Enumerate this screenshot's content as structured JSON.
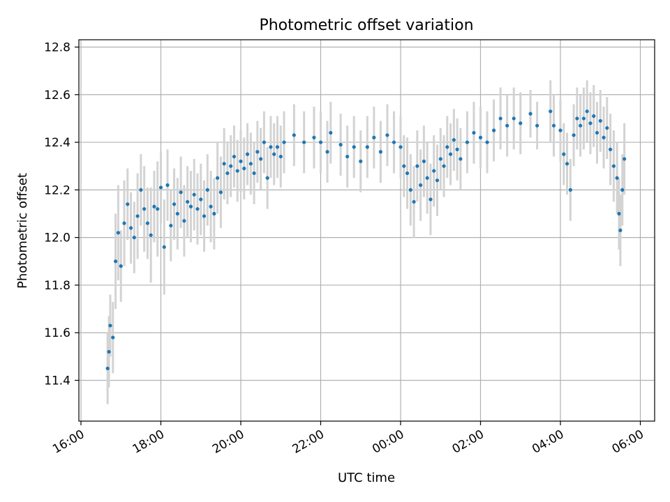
{
  "chart_data": {
    "type": "scatter",
    "title": "Photometric offset variation",
    "xlabel": "UTC time",
    "ylabel": "Photometric offset",
    "x_ticks": [
      "16:00",
      "18:00",
      "20:00",
      "22:00",
      "00:00",
      "02:00",
      "04:00",
      "06:00"
    ],
    "y_ticks": [
      "11.4",
      "11.6",
      "11.8",
      "12.0",
      "12.2",
      "12.4",
      "12.6",
      "12.8"
    ],
    "xlim": [
      "16:00",
      "06:20"
    ],
    "ylim": [
      11.23,
      12.83
    ],
    "grid": true,
    "x_tick_rotation_deg": 30,
    "colors": {
      "points": "#1f77b4",
      "errorbars": "#d3d3d3",
      "grid": "#b0b0b0"
    },
    "series": [
      {
        "marker": "dot",
        "error_band_half_width_approx": 0.13,
        "points": [
          [
            "16:40",
            11.45,
            0.15
          ],
          [
            "16:42",
            11.52,
            0.15
          ],
          [
            "16:44",
            11.63,
            0.13
          ],
          [
            "16:48",
            11.58,
            0.15
          ],
          [
            "16:52",
            11.9,
            0.2
          ],
          [
            "16:56",
            12.02,
            0.2
          ],
          [
            "17:00",
            11.88,
            0.15
          ],
          [
            "17:05",
            12.06,
            0.18
          ],
          [
            "17:10",
            12.14,
            0.15
          ],
          [
            "17:15",
            12.04,
            0.15
          ],
          [
            "17:20",
            12.0,
            0.15
          ],
          [
            "17:25",
            12.09,
            0.18
          ],
          [
            "17:30",
            12.2,
            0.15
          ],
          [
            "17:35",
            12.12,
            0.18
          ],
          [
            "17:40",
            12.06,
            0.15
          ],
          [
            "17:45",
            12.01,
            0.2
          ],
          [
            "17:50",
            12.13,
            0.15
          ],
          [
            "17:55",
            12.12,
            0.2
          ],
          [
            "18:00",
            12.21,
            0.15
          ],
          [
            "18:05",
            11.96,
            0.2
          ],
          [
            "18:10",
            12.22,
            0.15
          ],
          [
            "18:15",
            12.05,
            0.15
          ],
          [
            "18:20",
            12.14,
            0.15
          ],
          [
            "18:25",
            12.1,
            0.15
          ],
          [
            "18:30",
            12.19,
            0.15
          ],
          [
            "18:35",
            12.07,
            0.15
          ],
          [
            "18:40",
            12.15,
            0.15
          ],
          [
            "18:45",
            12.13,
            0.15
          ],
          [
            "18:50",
            12.18,
            0.15
          ],
          [
            "18:55",
            12.12,
            0.15
          ],
          [
            "19:00",
            12.16,
            0.15
          ],
          [
            "19:05",
            12.09,
            0.15
          ],
          [
            "19:10",
            12.2,
            0.15
          ],
          [
            "19:15",
            12.13,
            0.15
          ],
          [
            "19:20",
            12.1,
            0.15
          ],
          [
            "19:25",
            12.25,
            0.15
          ],
          [
            "19:30",
            12.19,
            0.15
          ],
          [
            "19:35",
            12.31,
            0.15
          ],
          [
            "19:40",
            12.27,
            0.13
          ],
          [
            "19:45",
            12.3,
            0.13
          ],
          [
            "19:50",
            12.34,
            0.13
          ],
          [
            "19:55",
            12.28,
            0.13
          ],
          [
            "20:00",
            12.32,
            0.13
          ],
          [
            "20:05",
            12.29,
            0.13
          ],
          [
            "20:10",
            12.35,
            0.13
          ],
          [
            "20:15",
            12.31,
            0.13
          ],
          [
            "20:20",
            12.27,
            0.13
          ],
          [
            "20:25",
            12.36,
            0.13
          ],
          [
            "20:30",
            12.33,
            0.13
          ],
          [
            "20:35",
            12.4,
            0.13
          ],
          [
            "20:40",
            12.25,
            0.13
          ],
          [
            "20:45",
            12.38,
            0.13
          ],
          [
            "20:50",
            12.35,
            0.13
          ],
          [
            "20:55",
            12.38,
            0.13
          ],
          [
            "21:00",
            12.34,
            0.13
          ],
          [
            "21:05",
            12.4,
            0.13
          ],
          [
            "21:20",
            12.43,
            0.13
          ],
          [
            "21:35",
            12.4,
            0.13
          ],
          [
            "21:50",
            12.42,
            0.13
          ],
          [
            "22:00",
            12.4,
            0.13
          ],
          [
            "22:10",
            12.36,
            0.13
          ],
          [
            "22:15",
            12.44,
            0.13
          ],
          [
            "22:30",
            12.39,
            0.13
          ],
          [
            "22:40",
            12.34,
            0.13
          ],
          [
            "22:50",
            12.38,
            0.13
          ],
          [
            "23:00",
            12.32,
            0.13
          ],
          [
            "23:10",
            12.38,
            0.13
          ],
          [
            "23:20",
            12.42,
            0.13
          ],
          [
            "23:30",
            12.36,
            0.13
          ],
          [
            "23:40",
            12.43,
            0.13
          ],
          [
            "23:50",
            12.4,
            0.13
          ],
          [
            "00:00",
            12.38,
            0.13
          ],
          [
            "00:05",
            12.3,
            0.13
          ],
          [
            "00:10",
            12.27,
            0.15
          ],
          [
            "00:15",
            12.2,
            0.15
          ],
          [
            "00:20",
            12.15,
            0.15
          ],
          [
            "00:25",
            12.3,
            0.15
          ],
          [
            "00:30",
            12.22,
            0.15
          ],
          [
            "00:35",
            12.32,
            0.15
          ],
          [
            "00:40",
            12.25,
            0.15
          ],
          [
            "00:45",
            12.16,
            0.15
          ],
          [
            "00:50",
            12.28,
            0.15
          ],
          [
            "00:55",
            12.24,
            0.15
          ],
          [
            "01:00",
            12.33,
            0.13
          ],
          [
            "01:05",
            12.3,
            0.13
          ],
          [
            "01:10",
            12.38,
            0.13
          ],
          [
            "01:15",
            12.35,
            0.13
          ],
          [
            "01:20",
            12.41,
            0.13
          ],
          [
            "01:25",
            12.37,
            0.13
          ],
          [
            "01:30",
            12.33,
            0.13
          ],
          [
            "01:40",
            12.4,
            0.13
          ],
          [
            "01:50",
            12.44,
            0.13
          ],
          [
            "02:00",
            12.42,
            0.13
          ],
          [
            "02:10",
            12.4,
            0.13
          ],
          [
            "02:20",
            12.45,
            0.13
          ],
          [
            "02:30",
            12.5,
            0.13
          ],
          [
            "02:40",
            12.47,
            0.13
          ],
          [
            "02:50",
            12.5,
            0.13
          ],
          [
            "03:00",
            12.48,
            0.13
          ],
          [
            "03:15",
            12.52,
            0.1
          ],
          [
            "03:25",
            12.47,
            0.1
          ],
          [
            "03:45",
            12.53,
            0.13
          ],
          [
            "03:50",
            12.47,
            0.13
          ],
          [
            "04:00",
            12.45,
            0.13
          ],
          [
            "04:05",
            12.35,
            0.13
          ],
          [
            "04:10",
            12.31,
            0.13
          ],
          [
            "04:15",
            12.2,
            0.13
          ],
          [
            "04:20",
            12.43,
            0.13
          ],
          [
            "04:25",
            12.5,
            0.13
          ],
          [
            "04:30",
            12.47,
            0.13
          ],
          [
            "04:35",
            12.5,
            0.13
          ],
          [
            "04:40",
            12.53,
            0.13
          ],
          [
            "04:45",
            12.48,
            0.13
          ],
          [
            "04:50",
            12.51,
            0.13
          ],
          [
            "04:55",
            12.44,
            0.13
          ],
          [
            "05:00",
            12.49,
            0.13
          ],
          [
            "05:05",
            12.42,
            0.13
          ],
          [
            "05:10",
            12.46,
            0.13
          ],
          [
            "05:15",
            12.37,
            0.15
          ],
          [
            "05:20",
            12.3,
            0.15
          ],
          [
            "05:25",
            12.25,
            0.15
          ],
          [
            "05:28",
            12.1,
            0.15
          ],
          [
            "05:30",
            12.03,
            0.15
          ],
          [
            "05:33",
            12.2,
            0.15
          ],
          [
            "05:36",
            12.33,
            0.15
          ]
        ]
      }
    ]
  }
}
